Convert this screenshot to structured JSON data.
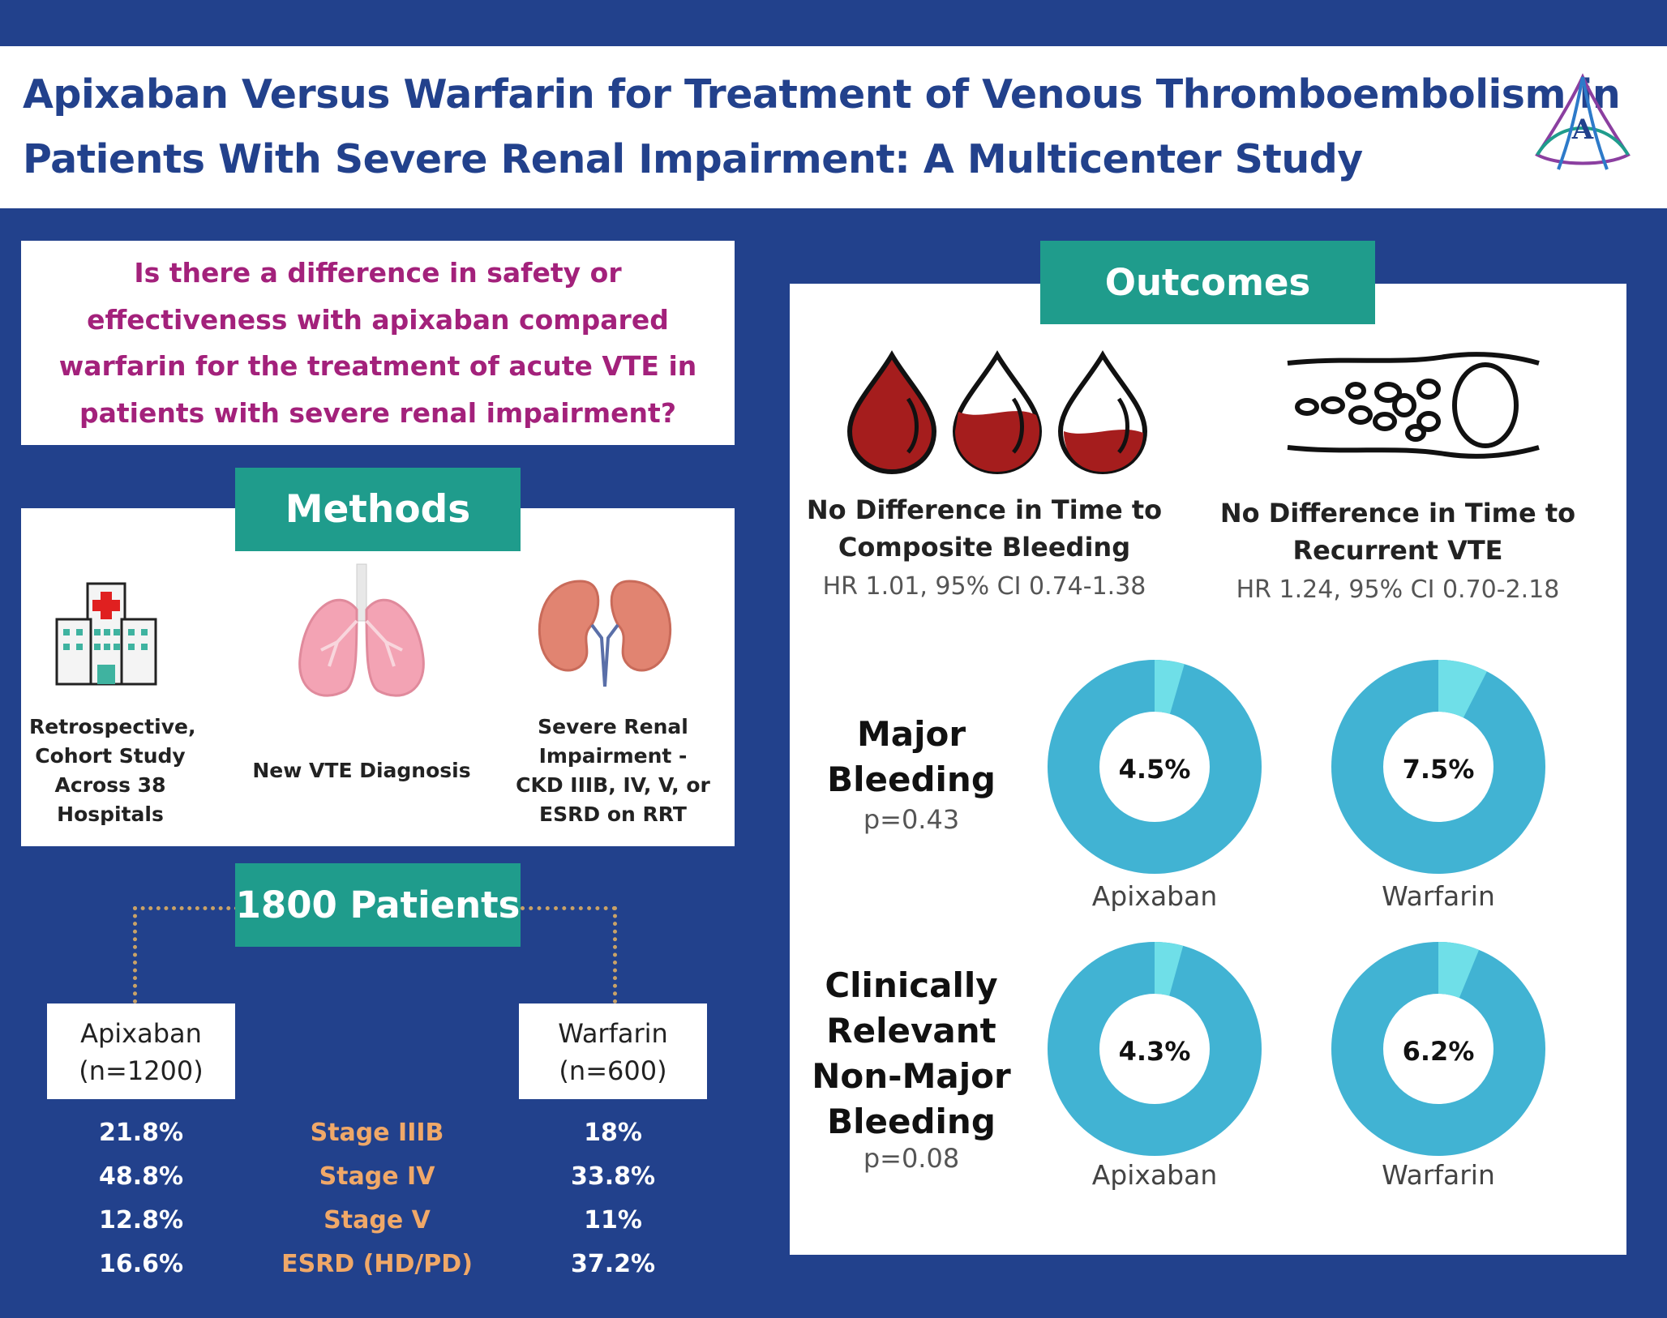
{
  "header": {
    "title_line1": "Apixaban Versus Warfarin for Treatment of Venous Thromboembolism in",
    "title_line2": "Patients With Severe Renal Impairment: A Multicenter Study"
  },
  "question": {
    "lines": [
      "Is there a difference in safety or",
      "effectiveness with apixaban compared",
      "warfarin for the treatment of acute VTE in",
      "patients with severe renal impairment?"
    ]
  },
  "methods": {
    "title": "Methods",
    "items": [
      {
        "icon": "hospital-icon",
        "lines": [
          "Retrospective,",
          "Cohort Study",
          "Across 38",
          "Hospitals"
        ]
      },
      {
        "icon": "lungs-icon",
        "lines": [
          "New VTE Diagnosis"
        ]
      },
      {
        "icon": "kidneys-icon",
        "lines": [
          "Severe Renal",
          "Impairment -",
          "CKD IIIB, IV, V, or",
          "ESRD on RRT"
        ]
      }
    ]
  },
  "patients": {
    "title": "1800 Patients",
    "groups": [
      {
        "name": "Apixaban",
        "n": "(n=1200)"
      },
      {
        "name": "Warfarin",
        "n": "(n=600)"
      }
    ],
    "stages": [
      "Stage IIIB",
      "Stage IV",
      "Stage V",
      "ESRD (HD/PD)"
    ],
    "apixaban_pct": [
      "21.8%",
      "48.8%",
      "12.8%",
      "16.6%"
    ],
    "warfarin_pct": [
      "18%",
      "33.8%",
      "11%",
      "37.2%"
    ]
  },
  "outcomes": {
    "title": "Outcomes",
    "bleeding": {
      "lines": [
        "No Difference in Time to",
        "Composite Bleeding"
      ],
      "hr": "HR 1.01, 95% CI 0.74-1.38"
    },
    "vte": {
      "lines": [
        "No Difference in Time to",
        "Recurrent VTE"
      ],
      "hr": "HR 1.24, 95% CI 0.70-2.18"
    },
    "major": {
      "label_lines": [
        "Major",
        "Bleeding"
      ],
      "p": "p=0.43",
      "apixaban": {
        "value": 4.5,
        "text": "4.5%",
        "label": "Apixaban"
      },
      "warfarin": {
        "value": 7.5,
        "text": "7.5%",
        "label": "Warfarin"
      }
    },
    "crnm": {
      "label_lines": [
        "Clinically",
        "Relevant",
        "Non-Major",
        "Bleeding"
      ],
      "p": "p=0.08",
      "apixaban": {
        "value": 4.3,
        "text": "4.3%",
        "label": "Apixaban"
      },
      "warfarin": {
        "value": 6.2,
        "text": "6.2%",
        "label": "Warfarin"
      }
    },
    "colors": {
      "ring": "#41b3d3",
      "slice": "#6fdfe8",
      "blood": "#a51d1d"
    }
  }
}
